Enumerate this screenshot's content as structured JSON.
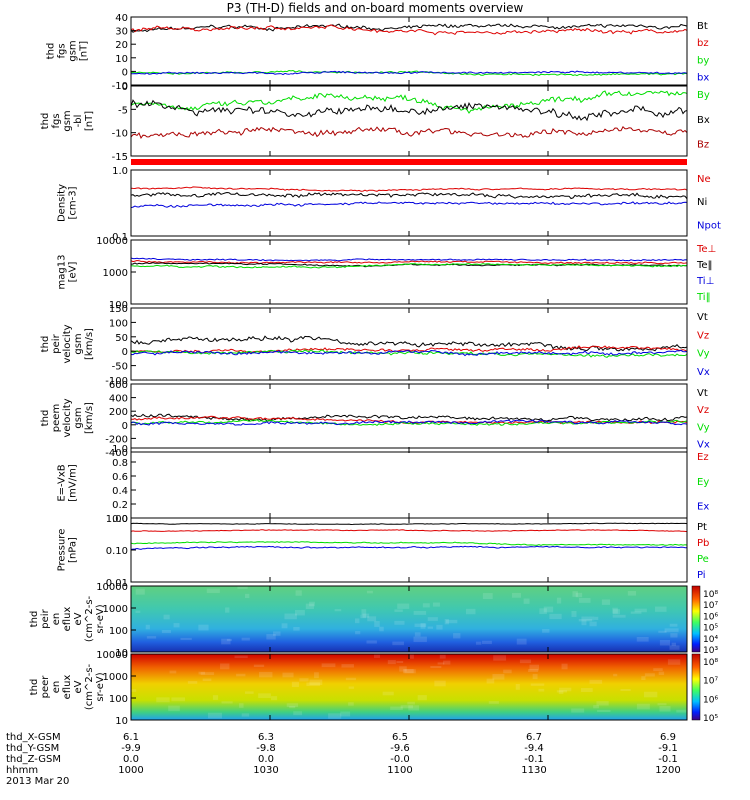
{
  "title": "P3 (TH-D) fields and on-board moments overview",
  "colors": {
    "black": "#000000",
    "red": "#dd0000",
    "green": "#00dd00",
    "blue": "#0000dd",
    "maroon": "#aa0000"
  },
  "chart_data": [
    {
      "type": "line",
      "panel": "fgs",
      "ylabel": [
        "thd",
        "fgs",
        "gsm",
        "[nT]"
      ],
      "ylim": [
        -10,
        40
      ],
      "yticks": [
        "40",
        "30",
        "20",
        "10",
        "0",
        "-10"
      ],
      "series": [
        {
          "name": "Bt",
          "color": "black",
          "base": 30,
          "amp": 4
        },
        {
          "name": "bz",
          "color": "red",
          "base": 30,
          "amp": 4
        },
        {
          "name": "by",
          "color": "green",
          "base": -1,
          "amp": 2
        },
        {
          "name": "bx",
          "color": "blue",
          "base": -2,
          "amp": 2
        }
      ]
    },
    {
      "type": "line",
      "panel": "fgs-dsl",
      "ylabel": [
        "thd",
        "fgs",
        "gsm",
        "-bl",
        "[nT]"
      ],
      "ylim": [
        -17,
        5
      ],
      "yticks": [
        "0",
        "-5",
        "-10",
        "-15"
      ],
      "series": [
        {
          "name": "By",
          "color": "green",
          "base": 0,
          "amp": 3
        },
        {
          "name": "Bx",
          "color": "black",
          "base": -1,
          "amp": 4
        },
        {
          "name": "Bz",
          "color": "maroon",
          "base": -11,
          "amp": 3
        }
      ]
    },
    {
      "type": "line",
      "panel": "density",
      "ylabel": [
        "Density",
        "[cm-3]"
      ],
      "log": true,
      "ylim": [
        0.1,
        1.2
      ],
      "yticks": [
        "1.0",
        "0.1"
      ],
      "series": [
        {
          "name": "Ne",
          "color": "red",
          "base": 0.6,
          "amp": 0.05
        },
        {
          "name": "Ni",
          "color": "black",
          "base": 0.45,
          "amp": 0.1
        },
        {
          "name": "Npot",
          "color": "blue",
          "base": 0.3,
          "amp": 0.05
        }
      ]
    },
    {
      "type": "line",
      "panel": "temperature",
      "ylabel": [
        "mag13",
        "[eV]"
      ],
      "log": true,
      "ylim": [
        100,
        12000
      ],
      "yticks": [
        "10000",
        "1000",
        "100"
      ],
      "series": [
        {
          "name": "Te⊥",
          "color": "red",
          "base": 2500,
          "amp": 400
        },
        {
          "name": "Te‖",
          "color": "black",
          "base": 2000,
          "amp": 300
        },
        {
          "name": "Ti⊥",
          "color": "blue",
          "base": 3000,
          "amp": 400
        },
        {
          "name": "Ti‖",
          "color": "green",
          "base": 1700,
          "amp": 300
        }
      ]
    },
    {
      "type": "line",
      "panel": "peir-velocity",
      "ylabel": [
        "thd",
        "peir",
        "velocity",
        "gsm",
        "[km/s]"
      ],
      "ylim": [
        -100,
        150
      ],
      "yticks": [
        "150",
        "100",
        "50",
        "0",
        "-50",
        "-100"
      ],
      "series": [
        {
          "name": "Vt",
          "color": "black",
          "base": 30,
          "amp": 25
        },
        {
          "name": "Vz",
          "color": "red",
          "base": 0,
          "amp": 15
        },
        {
          "name": "Vy",
          "color": "green",
          "base": -5,
          "amp": 15
        },
        {
          "name": "Vx",
          "color": "blue",
          "base": -10,
          "amp": 15
        }
      ]
    },
    {
      "type": "line",
      "panel": "peem-velocity",
      "ylabel": [
        "thd",
        "peem",
        "velocity",
        "gsm",
        "[km/s]"
      ],
      "ylim": [
        -500,
        600
      ],
      "yticks": [
        "600",
        "400",
        "200",
        "0",
        "-200",
        "-400"
      ],
      "series": [
        {
          "name": "Vt",
          "color": "black",
          "base": 100,
          "amp": 80
        },
        {
          "name": "Vz",
          "color": "red",
          "base": 30,
          "amp": 60
        },
        {
          "name": "Vy",
          "color": "green",
          "base": -30,
          "amp": 60
        },
        {
          "name": "Vx",
          "color": "blue",
          "base": -40,
          "amp": 70
        }
      ]
    },
    {
      "type": "line",
      "panel": "exb",
      "ylabel": [
        "E=-VxB",
        "[mV/m]"
      ],
      "ylim": [
        0,
        1
      ],
      "yticks": [
        "1.0",
        "0.8",
        "0.6",
        "0.4",
        "0.2",
        "0.0"
      ],
      "series": [
        {
          "name": "Ez",
          "color": "red"
        },
        {
          "name": "Ey",
          "color": "green"
        },
        {
          "name": "Ex",
          "color": "blue"
        }
      ]
    },
    {
      "type": "line",
      "panel": "pressure",
      "ylabel": [
        "Pressure",
        "[nPa]"
      ],
      "log": true,
      "ylim": [
        0.01,
        1.2
      ],
      "yticks": [
        "1.00",
        "0.10",
        "0.01"
      ],
      "series": [
        {
          "name": "Pt",
          "color": "black",
          "base": 0.8,
          "amp": 0.05
        },
        {
          "name": "Pb",
          "color": "red",
          "base": 0.45,
          "amp": 0.04
        },
        {
          "name": "Pe",
          "color": "green",
          "base": 0.18,
          "amp": 0.02
        },
        {
          "name": "Pi",
          "color": "blue",
          "base": 0.12,
          "amp": 0.02
        }
      ]
    },
    {
      "type": "heatmap",
      "panel": "peir-eflux",
      "ylabel": [
        "thd",
        "peir",
        "en",
        "eflux",
        "eV",
        "(cm^2-s-",
        "sr-eV)"
      ],
      "log": true,
      "ylim": [
        10,
        15000
      ],
      "yticks": [
        "10000",
        "1000",
        "100",
        "10"
      ],
      "colorbar": [
        "10⁸",
        "10⁷",
        "10⁶",
        "10⁵",
        "10⁴",
        "10³"
      ]
    },
    {
      "type": "heatmap",
      "panel": "peer-eflux",
      "ylabel": [
        "thd",
        "peer",
        "en",
        "eflux",
        "eV",
        "(cm^2-s-",
        "sr-eV)"
      ],
      "log": true,
      "ylim": [
        10,
        15000
      ],
      "yticks": [
        "10000",
        "1000",
        "100",
        "10"
      ],
      "colorbar": [
        "10⁸",
        "10⁷",
        "10⁶",
        "10⁵"
      ]
    }
  ],
  "xaxis": {
    "rows": [
      {
        "label": "thd_X-GSM",
        "values": [
          "6.1",
          "6.3",
          "6.5",
          "6.7",
          "6.9"
        ]
      },
      {
        "label": "thd_Y-GSM",
        "values": [
          "-9.9",
          "-9.8",
          "-9.6",
          "-9.4",
          "-9.1"
        ]
      },
      {
        "label": "thd_Z-GSM",
        "values": [
          "0.0",
          "0.0",
          "-0.0",
          "-0.1",
          "-0.1"
        ]
      },
      {
        "label": "hhmm",
        "values": [
          "1000",
          "1030",
          "1100",
          "1130",
          "1200"
        ]
      }
    ],
    "date": "2013 Mar 20"
  }
}
